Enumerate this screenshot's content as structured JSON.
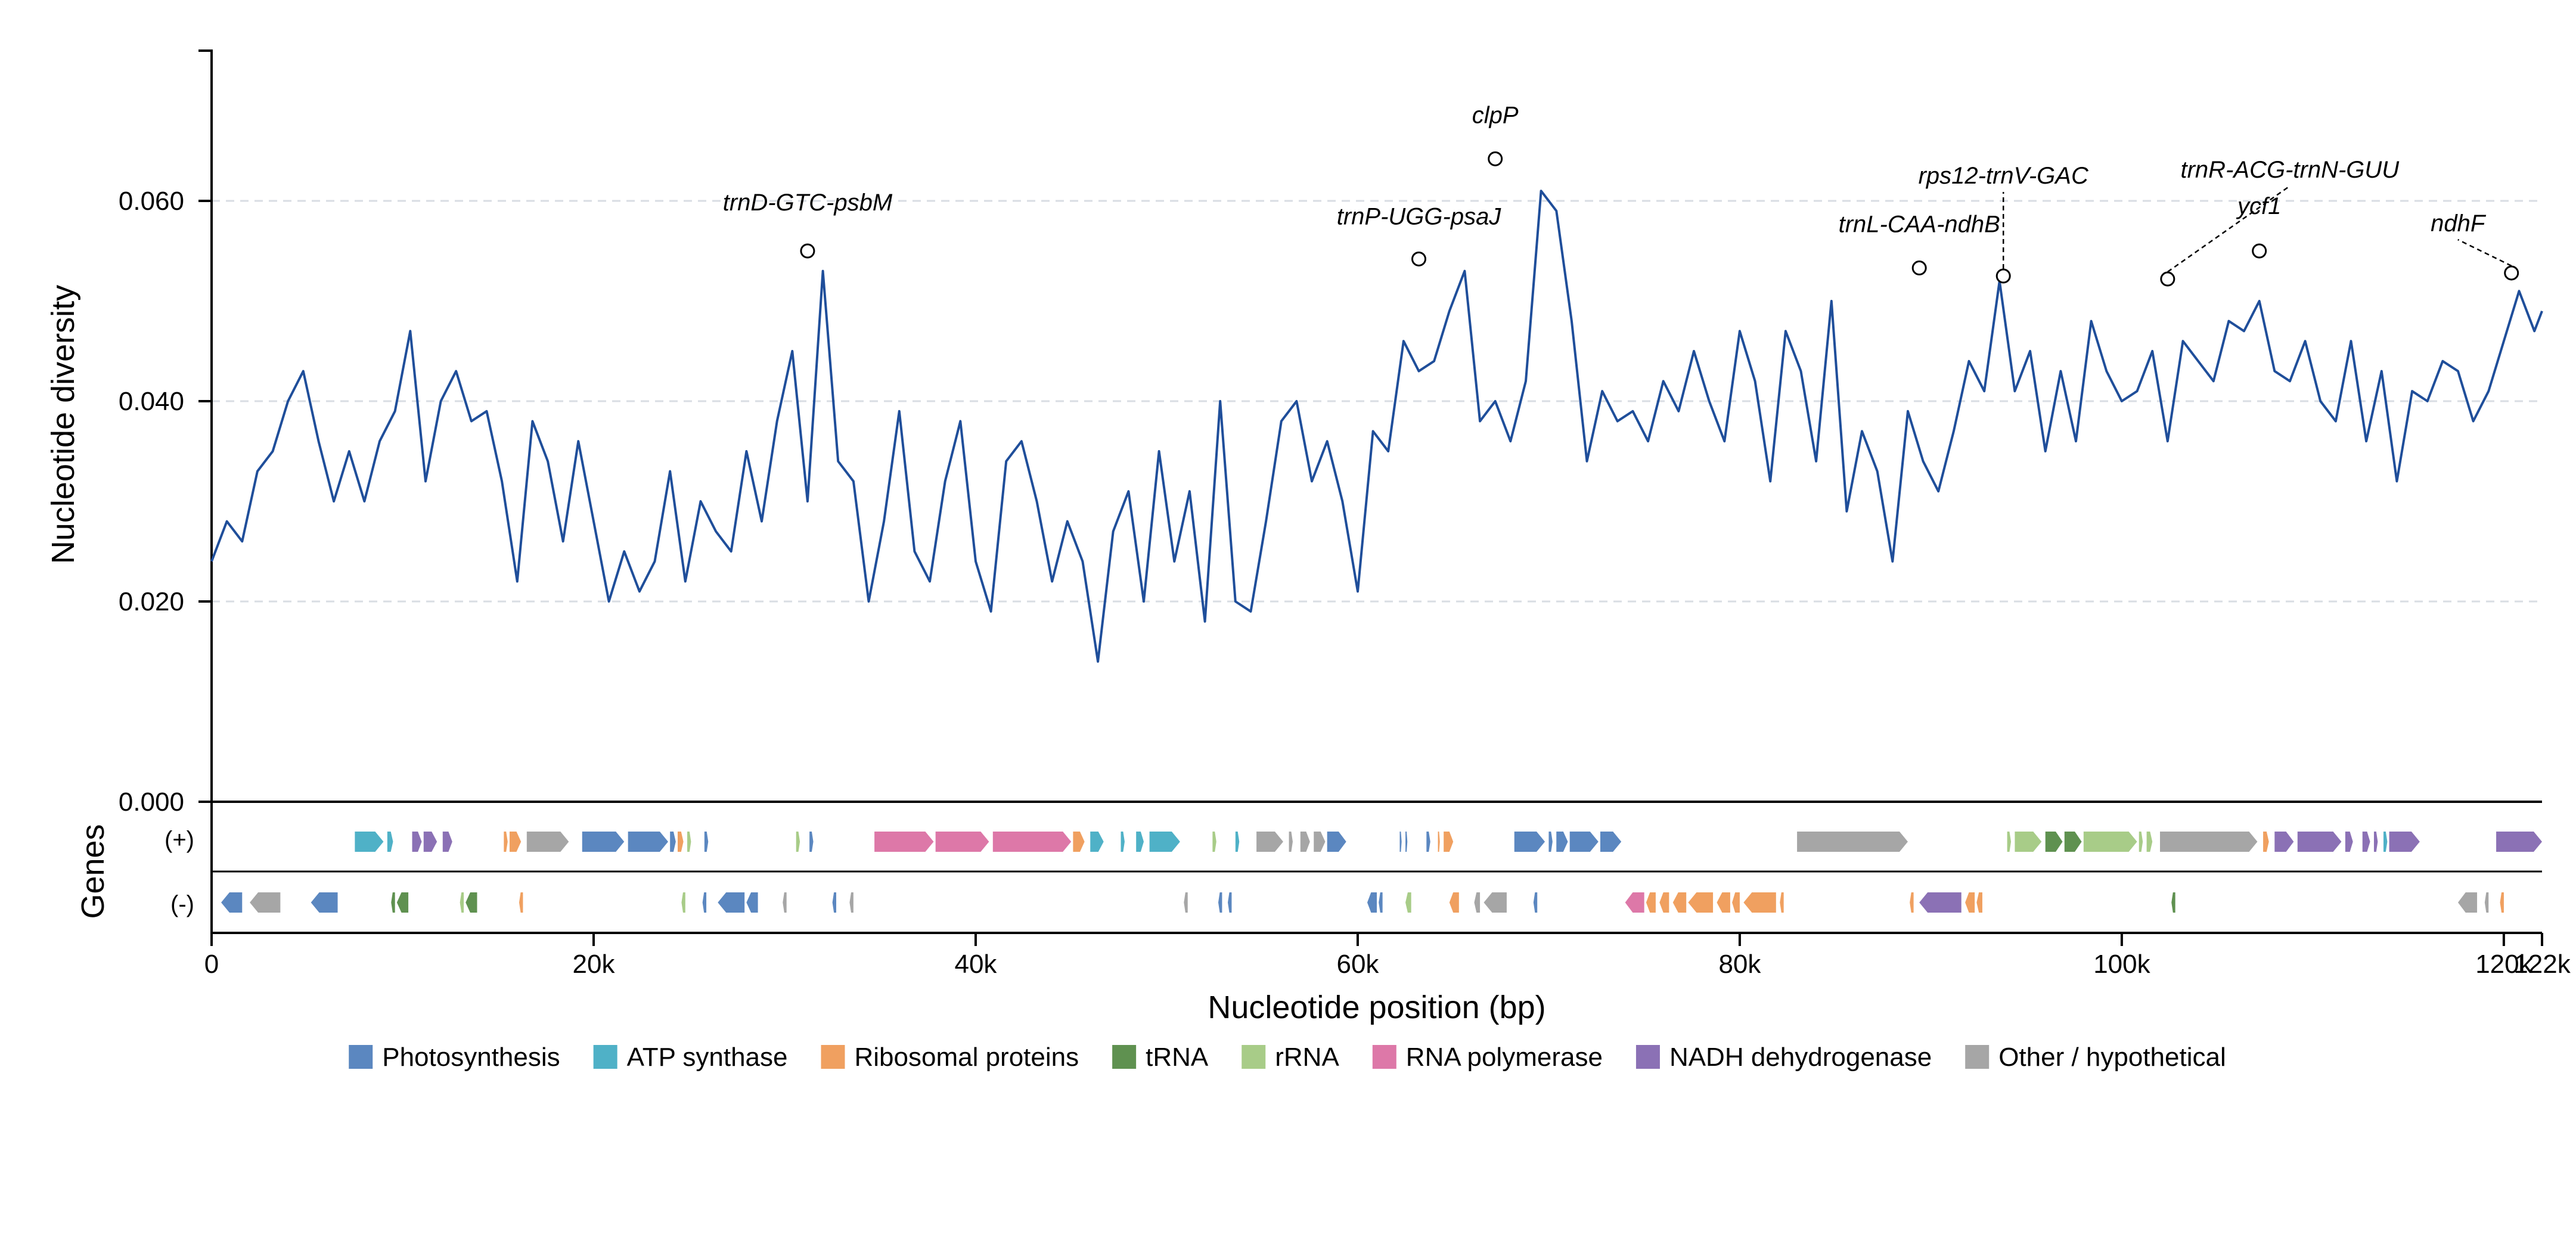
{
  "chart_data": {
    "type": "line",
    "title": "",
    "ylabel": "Nucleotide diversity",
    "xlabel": "Nucleotide position (bp)",
    "track_label": "Genes",
    "strand_labels": {
      "plus": "(+)",
      "minus": "(-)"
    },
    "xlim": [
      0,
      122000
    ],
    "ylim": [
      0.0,
      0.075
    ],
    "x_ticks": [
      {
        "value": 0,
        "label": "0"
      },
      {
        "value": 20000,
        "label": "20k"
      },
      {
        "value": 40000,
        "label": "40k"
      },
      {
        "value": 60000,
        "label": "60k"
      },
      {
        "value": 80000,
        "label": "80k"
      },
      {
        "value": 100000,
        "label": "100k"
      },
      {
        "value": 120000,
        "label": "120k"
      },
      {
        "value": 122000,
        "label": "122k"
      }
    ],
    "y_ticks": [
      {
        "value": 0.0,
        "label": "0.000"
      },
      {
        "value": 0.02,
        "label": "0.020"
      },
      {
        "value": 0.04,
        "label": "0.040"
      },
      {
        "value": 0.06,
        "label": "0.060"
      }
    ],
    "grid": "horizontal dashed at y ticks",
    "line_color": "#1f4e9a",
    "series": [
      {
        "x": [
          0,
          800,
          1600,
          2400,
          3200,
          4000,
          4800,
          5600,
          6400,
          7200,
          8000,
          8800,
          9600,
          10400,
          11200,
          12000,
          12800,
          13600,
          14400,
          15200,
          16000,
          16800,
          17600,
          18400,
          19200,
          20000,
          20800,
          21600,
          22400,
          23200,
          24000,
          24800,
          25600,
          26400,
          27200,
          28000,
          28800,
          29600,
          30400,
          31200,
          32000,
          32800,
          33600,
          34400,
          35200,
          36000,
          36800,
          37600,
          38400,
          39200,
          40000,
          40800,
          41600,
          42400,
          43200,
          44000,
          44800,
          45600,
          46400,
          47200,
          48000,
          48800,
          49600,
          50400,
          51200,
          52000,
          52800,
          53600,
          54400,
          55200,
          56000,
          56800,
          57600,
          58400,
          59200,
          60000,
          60800,
          61600,
          62400,
          63200,
          64000,
          64800,
          65600,
          66400,
          67200,
          68000,
          68800,
          69600,
          70400,
          71200,
          72000,
          72800,
          73600,
          74400,
          75200,
          76000,
          76800,
          77600,
          78400,
          79200,
          80000,
          80800,
          81600,
          82400,
          83200,
          84000,
          84800,
          85600,
          86400,
          87200,
          88000,
          88800,
          89600,
          90400,
          91200,
          92000,
          92800,
          93600,
          94400,
          95200,
          96000,
          96800,
          97600,
          98400,
          99200,
          100000,
          100800,
          101600,
          102400,
          103200,
          104000,
          104800,
          105600,
          106400,
          107200,
          108000,
          108800,
          109600,
          110400,
          111200,
          112000,
          112800,
          113600,
          114400,
          115200,
          116000,
          116800,
          117600,
          118400,
          119200,
          120000,
          120800,
          121600,
          122000
        ],
        "y": [
          0.024,
          0.028,
          0.026,
          0.033,
          0.035,
          0.04,
          0.043,
          0.036,
          0.03,
          0.035,
          0.03,
          0.036,
          0.039,
          0.047,
          0.032,
          0.04,
          0.043,
          0.038,
          0.039,
          0.032,
          0.022,
          0.038,
          0.034,
          0.026,
          0.036,
          0.028,
          0.02,
          0.025,
          0.021,
          0.024,
          0.033,
          0.022,
          0.03,
          0.027,
          0.025,
          0.035,
          0.028,
          0.038,
          0.045,
          0.03,
          0.053,
          0.034,
          0.032,
          0.02,
          0.028,
          0.039,
          0.025,
          0.022,
          0.032,
          0.038,
          0.024,
          0.019,
          0.034,
          0.036,
          0.03,
          0.022,
          0.028,
          0.024,
          0.014,
          0.027,
          0.031,
          0.02,
          0.035,
          0.024,
          0.031,
          0.018,
          0.04,
          0.02,
          0.019,
          0.028,
          0.038,
          0.04,
          0.032,
          0.036,
          0.03,
          0.021,
          0.037,
          0.035,
          0.046,
          0.043,
          0.044,
          0.049,
          0.053,
          0.038,
          0.04,
          0.036,
          0.042,
          0.061,
          0.059,
          0.048,
          0.034,
          0.041,
          0.038,
          0.039,
          0.036,
          0.042,
          0.039,
          0.045,
          0.04,
          0.036,
          0.047,
          0.042,
          0.032,
          0.047,
          0.043,
          0.034,
          0.05,
          0.029,
          0.037,
          0.033,
          0.024,
          0.039,
          0.034,
          0.031,
          0.037,
          0.044,
          0.041,
          0.052,
          0.041,
          0.045,
          0.035,
          0.043,
          0.036,
          0.048,
          0.043,
          0.04,
          0.041,
          0.045,
          0.036,
          0.046,
          0.044,
          0.042,
          0.048,
          0.047,
          0.05,
          0.043,
          0.042,
          0.046,
          0.04,
          0.038,
          0.046,
          0.036,
          0.043,
          0.032,
          0.041,
          0.04,
          0.044,
          0.043,
          0.038,
          0.041,
          0.046,
          0.051,
          0.047,
          0.049
        ]
      }
    ],
    "peaks": [
      {
        "x": 31200,
        "y": 0.055,
        "label": "trnD-GTC-psbM",
        "label_pos": "above"
      },
      {
        "x": 63200,
        "y": 0.0542,
        "label": "trnP-UGG-psaJ",
        "label_pos": "above"
      },
      {
        "x": 67200,
        "y": 0.0642,
        "label": "clpP",
        "label_pos": "above"
      },
      {
        "x": 89400,
        "y": 0.0533,
        "label": "trnL-CAA-ndhB",
        "label_pos": "above"
      },
      {
        "x": 93800,
        "y": 0.0525,
        "label": "rps12-trnV-GAC",
        "label_pos": "leader"
      },
      {
        "x": 102400,
        "y": 0.0522,
        "label": "trnR-ACG-trnN-GUU",
        "label_pos": "leader"
      },
      {
        "x": 107200,
        "y": 0.055,
        "label": "ycf1",
        "label_pos": "above"
      },
      {
        "x": 120400,
        "y": 0.0528,
        "label": "ndhF",
        "label_pos": "leader"
      }
    ],
    "gene_track": {
      "plus": [
        {
          "start": 7500,
          "end": 9000,
          "cat": "atp"
        },
        {
          "start": 9200,
          "end": 9500,
          "cat": "atp"
        },
        {
          "start": 10500,
          "end": 11000,
          "cat": "ndh"
        },
        {
          "start": 11100,
          "end": 11800,
          "cat": "ndh"
        },
        {
          "start": 12100,
          "end": 12600,
          "cat": "ndh"
        },
        {
          "start": 15300,
          "end": 15500,
          "cat": "ribo"
        },
        {
          "start": 15600,
          "end": 16200,
          "cat": "ribo"
        },
        {
          "start": 16500,
          "end": 18700,
          "cat": "other"
        },
        {
          "start": 19400,
          "end": 21600,
          "cat": "photo"
        },
        {
          "start": 21800,
          "end": 23900,
          "cat": "photo"
        },
        {
          "start": 24000,
          "end": 24300,
          "cat": "photo"
        },
        {
          "start": 24400,
          "end": 24700,
          "cat": "ribo"
        },
        {
          "start": 24900,
          "end": 25100,
          "cat": "rrna"
        },
        {
          "start": 25800,
          "end": 26000,
          "cat": "photo"
        },
        {
          "start": 30600,
          "end": 30800,
          "cat": "rrna"
        },
        {
          "start": 31300,
          "end": 31500,
          "cat": "photo"
        },
        {
          "start": 34700,
          "end": 37800,
          "cat": "rnapol"
        },
        {
          "start": 37900,
          "end": 40700,
          "cat": "rnapol"
        },
        {
          "start": 40900,
          "end": 45000,
          "cat": "rnapol"
        },
        {
          "start": 45100,
          "end": 45700,
          "cat": "ribo"
        },
        {
          "start": 46000,
          "end": 46700,
          "cat": "atp"
        },
        {
          "start": 47600,
          "end": 47800,
          "cat": "atp"
        },
        {
          "start": 48400,
          "end": 48800,
          "cat": "atp"
        },
        {
          "start": 49100,
          "end": 50700,
          "cat": "atp"
        },
        {
          "start": 52400,
          "end": 52600,
          "cat": "rrna"
        },
        {
          "start": 53600,
          "end": 53800,
          "cat": "atp"
        },
        {
          "start": 54700,
          "end": 56100,
          "cat": "other"
        },
        {
          "start": 56400,
          "end": 56600,
          "cat": "other"
        },
        {
          "start": 57000,
          "end": 57500,
          "cat": "other"
        },
        {
          "start": 57700,
          "end": 58300,
          "cat": "other"
        },
        {
          "start": 58400,
          "end": 59400,
          "cat": "photo"
        },
        {
          "start": 62200,
          "end": 62300,
          "cat": "photo"
        },
        {
          "start": 62500,
          "end": 62600,
          "cat": "photo"
        },
        {
          "start": 63600,
          "end": 63800,
          "cat": "photo"
        },
        {
          "start": 64200,
          "end": 64300,
          "cat": "ribo"
        },
        {
          "start": 64500,
          "end": 65000,
          "cat": "ribo"
        },
        {
          "start": 68200,
          "end": 69800,
          "cat": "photo"
        },
        {
          "start": 70000,
          "end": 70200,
          "cat": "photo"
        },
        {
          "start": 70400,
          "end": 71000,
          "cat": "photo"
        },
        {
          "start": 71100,
          "end": 72600,
          "cat": "photo"
        },
        {
          "start": 72700,
          "end": 73800,
          "cat": "photo"
        },
        {
          "start": 83000,
          "end": 88800,
          "cat": "other"
        },
        {
          "start": 94000,
          "end": 94200,
          "cat": "rrna"
        },
        {
          "start": 94400,
          "end": 95800,
          "cat": "rrna"
        },
        {
          "start": 96000,
          "end": 96900,
          "cat": "trna"
        },
        {
          "start": 97000,
          "end": 97900,
          "cat": "trna"
        },
        {
          "start": 98000,
          "end": 100800,
          "cat": "rrna"
        },
        {
          "start": 100900,
          "end": 101100,
          "cat": "rrna"
        },
        {
          "start": 101300,
          "end": 101600,
          "cat": "rrna"
        },
        {
          "start": 102000,
          "end": 107100,
          "cat": "other"
        },
        {
          "start": 107400,
          "end": 107700,
          "cat": "ribo"
        },
        {
          "start": 108000,
          "end": 109000,
          "cat": "ndh"
        },
        {
          "start": 109200,
          "end": 111500,
          "cat": "ndh"
        },
        {
          "start": 111700,
          "end": 112100,
          "cat": "ndh"
        },
        {
          "start": 112600,
          "end": 113000,
          "cat": "ndh"
        },
        {
          "start": 113200,
          "end": 113400,
          "cat": "ndh"
        },
        {
          "start": 113700,
          "end": 113900,
          "cat": "atp"
        },
        {
          "start": 114000,
          "end": 115600,
          "cat": "ndh"
        },
        {
          "start": 119600,
          "end": 122000,
          "cat": "ndh"
        }
      ],
      "minus": [
        {
          "start": 500,
          "end": 1600,
          "cat": "photo"
        },
        {
          "start": 2000,
          "end": 3600,
          "cat": "other"
        },
        {
          "start": 5200,
          "end": 6600,
          "cat": "photo"
        },
        {
          "start": 9400,
          "end": 9600,
          "cat": "trna"
        },
        {
          "start": 9700,
          "end": 10300,
          "cat": "trna"
        },
        {
          "start": 13000,
          "end": 13200,
          "cat": "rrna"
        },
        {
          "start": 13300,
          "end": 13900,
          "cat": "trna"
        },
        {
          "start": 16100,
          "end": 16300,
          "cat": "ribo"
        },
        {
          "start": 24600,
          "end": 24800,
          "cat": "rrna"
        },
        {
          "start": 25700,
          "end": 25900,
          "cat": "photo"
        },
        {
          "start": 26500,
          "end": 27900,
          "cat": "photo"
        },
        {
          "start": 28000,
          "end": 28600,
          "cat": "photo"
        },
        {
          "start": 29900,
          "end": 30100,
          "cat": "other"
        },
        {
          "start": 32500,
          "end": 32700,
          "cat": "photo"
        },
        {
          "start": 33400,
          "end": 33600,
          "cat": "other"
        },
        {
          "start": 50900,
          "end": 51100,
          "cat": "other"
        },
        {
          "start": 52700,
          "end": 52900,
          "cat": "photo"
        },
        {
          "start": 53200,
          "end": 53400,
          "cat": "photo"
        },
        {
          "start": 60500,
          "end": 61000,
          "cat": "photo"
        },
        {
          "start": 61100,
          "end": 61300,
          "cat": "photo"
        },
        {
          "start": 62500,
          "end": 62800,
          "cat": "rrna"
        },
        {
          "start": 64800,
          "end": 65300,
          "cat": "ribo"
        },
        {
          "start": 66100,
          "end": 66400,
          "cat": "other"
        },
        {
          "start": 66600,
          "end": 67800,
          "cat": "other"
        },
        {
          "start": 69200,
          "end": 69400,
          "cat": "photo"
        },
        {
          "start": 74000,
          "end": 75000,
          "cat": "rnapol"
        },
        {
          "start": 75100,
          "end": 75600,
          "cat": "ribo"
        },
        {
          "start": 75800,
          "end": 76300,
          "cat": "ribo"
        },
        {
          "start": 76500,
          "end": 77200,
          "cat": "ribo"
        },
        {
          "start": 77300,
          "end": 78600,
          "cat": "ribo"
        },
        {
          "start": 78800,
          "end": 79500,
          "cat": "ribo"
        },
        {
          "start": 79600,
          "end": 80000,
          "cat": "ribo"
        },
        {
          "start": 80200,
          "end": 81900,
          "cat": "ribo"
        },
        {
          "start": 82100,
          "end": 82300,
          "cat": "ribo"
        },
        {
          "start": 88900,
          "end": 89100,
          "cat": "ribo"
        },
        {
          "start": 89400,
          "end": 91600,
          "cat": "ndh"
        },
        {
          "start": 91800,
          "end": 92300,
          "cat": "ribo"
        },
        {
          "start": 92400,
          "end": 92700,
          "cat": "ribo"
        },
        {
          "start": 102600,
          "end": 102800,
          "cat": "trna"
        },
        {
          "start": 117600,
          "end": 118600,
          "cat": "other"
        },
        {
          "start": 119000,
          "end": 119200,
          "cat": "other"
        },
        {
          "start": 119800,
          "end": 120000,
          "cat": "ribo"
        }
      ]
    },
    "legend": [
      {
        "key": "photo",
        "label": "Photosynthesis",
        "color": "#5b87c0"
      },
      {
        "key": "atp",
        "label": "ATP synthase",
        "color": "#4fb1c7"
      },
      {
        "key": "ribo",
        "label": "Ribosomal proteins",
        "color": "#f0a060"
      },
      {
        "key": "trna",
        "label": "tRNA",
        "color": "#5f9150"
      },
      {
        "key": "rrna",
        "label": "rRNA",
        "color": "#a8cc88"
      },
      {
        "key": "rnapol",
        "label": "RNA polymerase",
        "color": "#dd78a8"
      },
      {
        "key": "ndh",
        "label": "NADH dehydrogenase",
        "color": "#8b71b5"
      },
      {
        "key": "other",
        "label": "Other / hypothetical",
        "color": "#a6a6a6"
      }
    ],
    "legend_position": "bottom-center"
  }
}
